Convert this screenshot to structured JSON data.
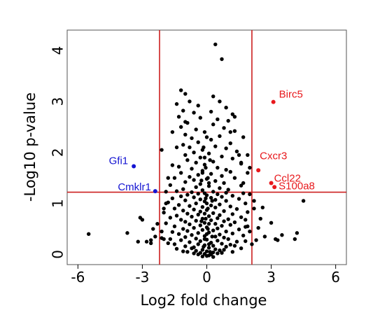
{
  "chart_data": {
    "type": "scatter",
    "title": "",
    "xlabel": "Log2 fold change",
    "ylabel": "-Log10 p-value",
    "xlim": [
      -6.5,
      6.5
    ],
    "ylim": [
      -0.2,
      4.4
    ],
    "xticks": [
      -6,
      -3,
      0,
      3,
      6
    ],
    "xtick_labels": [
      "-6",
      "-3",
      "0",
      "3",
      "6"
    ],
    "yticks": [
      0,
      1,
      2,
      3,
      4
    ],
    "ytick_labels": [
      "0",
      "1",
      "2",
      "3",
      "4"
    ],
    "grid": false,
    "legend": "none",
    "thresholds": {
      "x": [
        -2.2,
        2.1
      ],
      "y": 1.22
    },
    "colors": {
      "default": "#000000",
      "up": "#e8181c",
      "down": "#1414d2",
      "threshold": "#cc1f1f"
    },
    "highlighted": [
      {
        "label": "Gfi1",
        "x": -3.4,
        "y": 1.73,
        "group": "down"
      },
      {
        "label": "Cmklr1",
        "x": -2.4,
        "y": 1.24,
        "group": "down"
      },
      {
        "label": "Birc5",
        "x": 3.1,
        "y": 2.99,
        "group": "up"
      },
      {
        "label": "Cxcr3",
        "x": 2.4,
        "y": 1.65,
        "group": "up"
      },
      {
        "label": "Ccl22",
        "x": 3.0,
        "y": 1.4,
        "group": "up"
      },
      {
        "label": "S100a8",
        "x": 3.15,
        "y": 1.32,
        "group": "up"
      }
    ],
    "points": [
      [
        0.4,
        4.12
      ],
      [
        0.7,
        3.83
      ],
      [
        -1.2,
        3.22
      ],
      [
        -1.0,
        3.15
      ],
      [
        0.3,
        3.1
      ],
      [
        -0.8,
        3.0
      ],
      [
        0.6,
        3.0
      ],
      [
        -1.4,
        2.95
      ],
      [
        -0.4,
        2.92
      ],
      [
        0.9,
        2.88
      ],
      [
        -1.1,
        2.82
      ],
      [
        0.2,
        2.8
      ],
      [
        -0.6,
        2.78
      ],
      [
        1.2,
        2.75
      ],
      [
        -1.3,
        2.7
      ],
      [
        -0.3,
        2.68
      ],
      [
        0.5,
        2.65
      ],
      [
        1.0,
        2.62
      ],
      [
        -0.9,
        2.58
      ],
      [
        0.3,
        2.55
      ],
      [
        -1.2,
        2.5
      ],
      [
        0.8,
        2.48
      ],
      [
        -0.5,
        2.45
      ],
      [
        1.3,
        2.42
      ],
      [
        -0.1,
        2.4
      ],
      [
        -1.0,
        2.35
      ],
      [
        0.6,
        2.32
      ],
      [
        -0.7,
        2.28
      ],
      [
        0.2,
        2.25
      ],
      [
        -2.1,
        2.05
      ],
      [
        -0.4,
        2.2
      ],
      [
        1.1,
        2.18
      ],
      [
        -1.1,
        2.15
      ],
      [
        0.4,
        2.12
      ],
      [
        -0.8,
        2.1
      ],
      [
        0.9,
        2.08
      ],
      [
        -0.2,
        2.05
      ],
      [
        1.4,
        2.02
      ],
      [
        -0.6,
        2.0
      ],
      [
        0.1,
        1.98
      ],
      [
        -1.0,
        1.95
      ],
      [
        0.7,
        1.92
      ],
      [
        -0.3,
        1.9
      ],
      [
        1.2,
        1.88
      ],
      [
        -0.9,
        1.85
      ],
      [
        0.3,
        1.82
      ],
      [
        -0.5,
        1.8
      ],
      [
        1.6,
        1.78
      ],
      [
        -0.1,
        1.76
      ],
      [
        2.0,
        1.7
      ],
      [
        -1.3,
        1.72
      ],
      [
        0.5,
        1.7
      ],
      [
        -0.7,
        1.68
      ],
      [
        0.9,
        1.66
      ],
      [
        -0.2,
        1.64
      ],
      [
        1.1,
        1.62
      ],
      [
        -1.2,
        1.6
      ],
      [
        0.2,
        1.58
      ],
      [
        -0.4,
        1.56
      ],
      [
        0.7,
        1.54
      ],
      [
        -0.8,
        1.52
      ],
      [
        1.3,
        1.5
      ],
      [
        -1.5,
        1.5
      ],
      [
        0.0,
        1.48
      ],
      [
        -0.6,
        1.46
      ],
      [
        0.4,
        1.44
      ],
      [
        -1.0,
        1.42
      ],
      [
        0.8,
        1.4
      ],
      [
        -0.3,
        1.38
      ],
      [
        1.6,
        1.35
      ],
      [
        -1.7,
        1.36
      ],
      [
        0.1,
        1.34
      ],
      [
        -0.5,
        1.32
      ],
      [
        0.6,
        1.3
      ],
      [
        -1.1,
        1.28
      ],
      [
        1.0,
        1.27
      ],
      [
        -0.2,
        1.26
      ],
      [
        -1.4,
        1.24
      ],
      [
        0.3,
        1.23
      ],
      [
        -0.7,
        1.22
      ],
      [
        0.9,
        1.21
      ],
      [
        -1.9,
        1.23
      ],
      [
        1.7,
        1.2
      ],
      [
        -0.4,
        1.19
      ],
      [
        0.5,
        1.18
      ],
      [
        -0.9,
        1.17
      ],
      [
        0.0,
        1.16
      ],
      [
        1.2,
        1.15
      ],
      [
        -1.2,
        1.14
      ],
      [
        0.7,
        1.13
      ],
      [
        -0.6,
        1.12
      ],
      [
        0.2,
        1.11
      ],
      [
        -1.6,
        1.1
      ],
      [
        1.5,
        1.09
      ],
      [
        -0.3,
        1.08
      ],
      [
        0.4,
        1.07
      ],
      [
        -1.0,
        1.06
      ],
      [
        0.9,
        1.05
      ],
      [
        -0.1,
        1.04
      ],
      [
        -1.8,
        1.02
      ],
      [
        1.8,
        1.0
      ],
      [
        -0.5,
        1.0
      ],
      [
        0.6,
        0.98
      ],
      [
        -1.3,
        0.97
      ],
      [
        0.2,
        0.96
      ],
      [
        -0.8,
        0.95
      ],
      [
        1.1,
        0.94
      ],
      [
        -0.2,
        0.93
      ],
      [
        0.4,
        0.92
      ],
      [
        -1.5,
        0.9
      ],
      [
        1.4,
        0.89
      ],
      [
        -0.6,
        0.88
      ],
      [
        0.0,
        0.87
      ],
      [
        -1.1,
        0.86
      ],
      [
        0.8,
        0.85
      ],
      [
        -0.3,
        0.84
      ],
      [
        1.9,
        0.83
      ],
      [
        -2.0,
        0.82
      ],
      [
        0.3,
        0.81
      ],
      [
        -0.9,
        0.8
      ],
      [
        1.2,
        0.79
      ],
      [
        -0.4,
        0.78
      ],
      [
        0.6,
        0.77
      ],
      [
        -1.4,
        0.76
      ],
      [
        0.1,
        0.75
      ],
      [
        -0.7,
        0.74
      ],
      [
        1.6,
        0.73
      ],
      [
        -1.7,
        0.72
      ],
      [
        0.5,
        0.71
      ],
      [
        -0.2,
        0.7
      ],
      [
        1.0,
        0.69
      ],
      [
        -1.2,
        0.68
      ],
      [
        0.2,
        0.67
      ],
      [
        -0.5,
        0.66
      ],
      [
        0.8,
        0.65
      ],
      [
        -1.0,
        0.64
      ],
      [
        1.3,
        0.63
      ],
      [
        -0.1,
        0.62
      ],
      [
        -1.9,
        0.61
      ],
      [
        0.4,
        0.6
      ],
      [
        -0.8,
        0.59
      ],
      [
        1.1,
        0.58
      ],
      [
        -0.3,
        0.57
      ],
      [
        0.7,
        0.56
      ],
      [
        -1.5,
        0.55
      ],
      [
        1.8,
        0.54
      ],
      [
        0.0,
        0.53
      ],
      [
        -0.6,
        0.52
      ],
      [
        0.5,
        0.51
      ],
      [
        -1.1,
        0.5
      ],
      [
        1.5,
        0.49
      ],
      [
        -0.2,
        0.48
      ],
      [
        0.3,
        0.47
      ],
      [
        -0.9,
        0.46
      ],
      [
        0.9,
        0.45
      ],
      [
        -1.6,
        0.44
      ],
      [
        0.1,
        0.43
      ],
      [
        -0.4,
        0.42
      ],
      [
        1.2,
        0.41
      ],
      [
        -1.3,
        0.4
      ],
      [
        0.6,
        0.39
      ],
      [
        -0.7,
        0.38
      ],
      [
        1.7,
        0.37
      ],
      [
        -0.1,
        0.36
      ],
      [
        0.4,
        0.35
      ],
      [
        -1.0,
        0.34
      ],
      [
        0.8,
        0.33
      ],
      [
        -2.1,
        0.32
      ],
      [
        -0.5,
        0.31
      ],
      [
        1.0,
        0.3
      ],
      [
        0.0,
        0.29
      ],
      [
        -1.2,
        0.28
      ],
      [
        0.5,
        0.27
      ],
      [
        -0.3,
        0.26
      ],
      [
        1.4,
        0.25
      ],
      [
        -0.8,
        0.24
      ],
      [
        0.2,
        0.23
      ],
      [
        -1.8,
        0.22
      ],
      [
        0.7,
        0.21
      ],
      [
        -0.4,
        0.2
      ],
      [
        1.1,
        0.19
      ],
      [
        -0.1,
        0.18
      ],
      [
        0.3,
        0.17
      ],
      [
        -1.0,
        0.16
      ],
      [
        0.9,
        0.15
      ],
      [
        -0.6,
        0.14
      ],
      [
        0.1,
        0.13
      ],
      [
        1.6,
        0.12
      ],
      [
        -1.4,
        0.11
      ],
      [
        0.4,
        0.1
      ],
      [
        -0.2,
        0.09
      ],
      [
        0.6,
        0.08
      ],
      [
        -0.5,
        0.07
      ],
      [
        0.0,
        0.06
      ],
      [
        1.2,
        0.05
      ],
      [
        -0.9,
        0.05
      ],
      [
        0.3,
        0.04
      ],
      [
        -0.3,
        0.03
      ],
      [
        0.5,
        0.02
      ],
      [
        -0.1,
        0.01
      ],
      [
        0.2,
        0.0
      ],
      [
        -0.4,
        0.0
      ],
      [
        0.1,
        -0.02
      ],
      [
        0.0,
        -0.03
      ],
      [
        -0.2,
        -0.04
      ],
      [
        0.3,
        -0.05
      ],
      [
        -0.6,
        0.02
      ],
      [
        0.7,
        0.03
      ],
      [
        -1.1,
        0.06
      ],
      [
        0.8,
        0.09
      ],
      [
        -0.7,
        0.12
      ],
      [
        1.3,
        0.17
      ],
      [
        -1.5,
        0.2
      ],
      [
        1.8,
        0.26
      ],
      [
        -1.7,
        0.3
      ],
      [
        -0.1,
        1.9
      ],
      [
        0.0,
        2.3
      ],
      [
        -0.2,
        1.6
      ],
      [
        0.1,
        1.4
      ],
      [
        -0.1,
        1.2
      ],
      [
        0.0,
        1.0
      ],
      [
        -0.1,
        0.8
      ],
      [
        0.1,
        0.6
      ],
      [
        0.0,
        0.4
      ],
      [
        -0.1,
        0.3
      ],
      [
        0.1,
        0.2
      ],
      [
        -0.05,
        1.7
      ],
      [
        0.05,
        1.5
      ],
      [
        -0.05,
        1.1
      ],
      [
        0.05,
        0.9
      ],
      [
        -0.05,
        0.7
      ],
      [
        0.05,
        0.5
      ],
      [
        -0.15,
        2.1
      ],
      [
        0.15,
        1.85
      ],
      [
        -0.25,
        1.45
      ],
      [
        0.25,
        1.05
      ],
      [
        -0.25,
        0.65
      ],
      [
        0.25,
        0.35
      ],
      [
        -0.15,
        0.15
      ],
      [
        0.15,
        0.05
      ],
      [
        2.0,
        0.45
      ],
      [
        2.3,
        0.28
      ],
      [
        2.7,
        0.35
      ],
      [
        3.0,
        0.62
      ],
      [
        3.2,
        0.3
      ],
      [
        3.3,
        0.28
      ],
      [
        3.5,
        0.38
      ],
      [
        4.1,
        0.3
      ],
      [
        4.2,
        0.42
      ],
      [
        4.5,
        1.05
      ],
      [
        2.2,
        0.9
      ],
      [
        2.0,
        1.18
      ],
      [
        2.5,
        0.7
      ],
      [
        2.4,
        0.52
      ],
      [
        1.9,
        0.55
      ],
      [
        2.1,
        0.2
      ],
      [
        1.8,
        0.68
      ],
      [
        2.6,
        0.92
      ],
      [
        -3.1,
        0.72
      ],
      [
        -3.0,
        0.68
      ],
      [
        -2.8,
        0.25
      ],
      [
        -2.6,
        0.28
      ],
      [
        -2.6,
        0.22
      ],
      [
        -3.2,
        0.25
      ],
      [
        -3.7,
        0.42
      ],
      [
        -5.5,
        0.4
      ],
      [
        -2.5,
        0.5
      ],
      [
        -2.4,
        0.35
      ],
      [
        -2.3,
        0.6
      ],
      [
        -2.1,
        0.45
      ],
      [
        -2.0,
        0.3
      ],
      [
        1.6,
        1.8
      ],
      [
        1.9,
        1.6
      ],
      [
        1.7,
        1.4
      ],
      [
        2.2,
        1.05
      ],
      [
        1.5,
        1.95
      ],
      [
        1.7,
        2.3
      ],
      [
        1.9,
        1.95
      ],
      [
        -1.8,
        1.5
      ],
      [
        -1.6,
        1.75
      ],
      [
        -1.9,
        1.0
      ],
      [
        -2.0,
        0.9
      ],
      [
        -1.4,
        2.1
      ],
      [
        -1.6,
        2.4
      ],
      [
        -1.0,
        2.6
      ],
      [
        1.3,
        2.7
      ],
      [
        1.1,
        2.4
      ]
    ]
  }
}
